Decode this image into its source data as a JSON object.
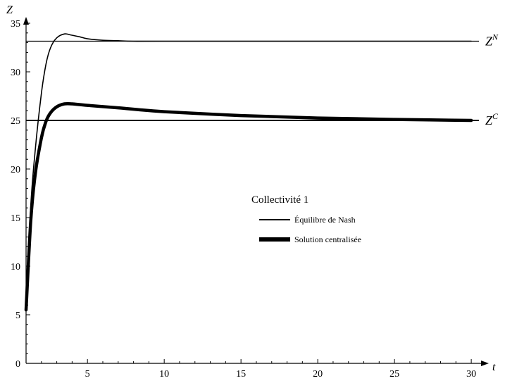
{
  "chart_data": {
    "type": "line",
    "title": "",
    "xlabel": "t",
    "ylabel": "Z",
    "xlim": [
      1,
      30.5
    ],
    "ylim": [
      0,
      35
    ],
    "x_ticks": [
      5,
      10,
      15,
      20,
      25,
      30
    ],
    "y_ticks": [
      0,
      5,
      10,
      15,
      20,
      25,
      30,
      35
    ],
    "grid": false,
    "legend": {
      "title": "Collectivité 1",
      "placement": "center-right",
      "entries": [
        "Équilibre de Nash",
        "Solution centralisée"
      ]
    },
    "series": [
      {
        "name": "Équilibre de Nash",
        "style": "thin",
        "x": [
          1.0,
          1.3,
          1.6,
          2.0,
          2.3,
          2.6,
          3.0,
          3.5,
          3.9,
          4.5,
          5.0,
          6.0,
          7.0,
          8.0,
          10.0,
          15.0,
          20.0,
          25.0,
          30.0
        ],
        "y": [
          5.5,
          16.0,
          22.0,
          27.8,
          30.8,
          32.5,
          33.5,
          33.9,
          33.8,
          33.6,
          33.4,
          33.25,
          33.2,
          33.15,
          33.15,
          33.15,
          33.15,
          33.15,
          33.15
        ]
      },
      {
        "name": "Solution centralisée",
        "style": "thick",
        "x": [
          1.0,
          1.3,
          1.6,
          2.0,
          2.3,
          2.6,
          3.0,
          3.5,
          4.0,
          5.0,
          7.0,
          10.0,
          15.0,
          20.0,
          25.0,
          30.0
        ],
        "y": [
          5.5,
          14.5,
          19.5,
          23.2,
          24.9,
          25.8,
          26.4,
          26.7,
          26.7,
          26.55,
          26.3,
          25.9,
          25.5,
          25.25,
          25.1,
          25.0
        ]
      }
    ],
    "reference_lines": [
      {
        "y": 33.15,
        "label_base": "Z",
        "label_sup": "N"
      },
      {
        "y": 25.0,
        "label_base": "Z",
        "label_sup": "C"
      }
    ]
  }
}
